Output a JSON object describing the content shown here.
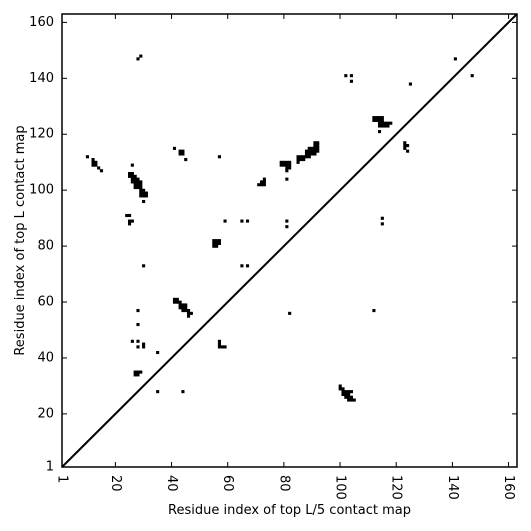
{
  "chart_data": {
    "type": "scatter",
    "title": "",
    "xlabel": "Residue index of top L/5 contact map",
    "ylabel": "Residue index of top L contact map",
    "xlim": [
      1,
      163
    ],
    "ylim": [
      1,
      163
    ],
    "xticks": [
      1,
      20,
      40,
      60,
      80,
      100,
      120,
      140,
      160
    ],
    "yticks": [
      1,
      20,
      40,
      60,
      80,
      100,
      120,
      140,
      160
    ],
    "tick_labels": {
      "x": [
        "1",
        "20",
        "40",
        "60",
        "80",
        "100",
        "120",
        "140",
        "160"
      ],
      "y": [
        "1",
        "20",
        "40",
        "60",
        "80",
        "100",
        "120",
        "140",
        "160"
      ]
    },
    "x_tick_label_rotation": 90,
    "grid": false,
    "diagonal": true,
    "colors": {
      "contact": "#000000",
      "axis": "#000000",
      "background": "#ffffff"
    },
    "series": [
      {
        "marker": "square",
        "points": [
          [
            10,
            112
          ],
          [
            12,
            111
          ],
          [
            12,
            110
          ],
          [
            13,
            110
          ],
          [
            12,
            109
          ],
          [
            13,
            109
          ],
          [
            14,
            108
          ],
          [
            15,
            107
          ],
          [
            24,
            91
          ],
          [
            25,
            91
          ],
          [
            25,
            89
          ],
          [
            26,
            89
          ],
          [
            25,
            88
          ],
          [
            25,
            106
          ],
          [
            26,
            106
          ],
          [
            25,
            105
          ],
          [
            26,
            105
          ],
          [
            27,
            105
          ],
          [
            26,
            104
          ],
          [
            27,
            104
          ],
          [
            28,
            104
          ],
          [
            26,
            103
          ],
          [
            27,
            103
          ],
          [
            28,
            103
          ],
          [
            29,
            103
          ],
          [
            27,
            102
          ],
          [
            28,
            102
          ],
          [
            29,
            102
          ],
          [
            27,
            101
          ],
          [
            28,
            101
          ],
          [
            29,
            101
          ],
          [
            29,
            100
          ],
          [
            30,
            100
          ],
          [
            29,
            99
          ],
          [
            30,
            99
          ],
          [
            31,
            99
          ],
          [
            29,
            98
          ],
          [
            30,
            98
          ],
          [
            31,
            98
          ],
          [
            30,
            96
          ],
          [
            26,
            109
          ],
          [
            28,
            147
          ],
          [
            29,
            148
          ],
          [
            30,
            73
          ],
          [
            28,
            57
          ],
          [
            28,
            52
          ],
          [
            26,
            46
          ],
          [
            28,
            46
          ],
          [
            30,
            45
          ],
          [
            28,
            44
          ],
          [
            30,
            44
          ],
          [
            27,
            35
          ],
          [
            28,
            35
          ],
          [
            29,
            35
          ],
          [
            27,
            34
          ],
          [
            28,
            34
          ],
          [
            35,
            42
          ],
          [
            35,
            28
          ],
          [
            44,
            28
          ],
          [
            41,
            61
          ],
          [
            42,
            61
          ],
          [
            41,
            60
          ],
          [
            42,
            60
          ],
          [
            43,
            60
          ],
          [
            43,
            59
          ],
          [
            44,
            59
          ],
          [
            45,
            59
          ],
          [
            43,
            58
          ],
          [
            44,
            58
          ],
          [
            45,
            58
          ],
          [
            44,
            57
          ],
          [
            45,
            57
          ],
          [
            46,
            57
          ],
          [
            46,
            56
          ],
          [
            47,
            56
          ],
          [
            46,
            55
          ],
          [
            41,
            115
          ],
          [
            43,
            114
          ],
          [
            44,
            114
          ],
          [
            43,
            113
          ],
          [
            44,
            113
          ],
          [
            45,
            111
          ],
          [
            55,
            82
          ],
          [
            56,
            82
          ],
          [
            57,
            82
          ],
          [
            55,
            81
          ],
          [
            56,
            81
          ],
          [
            57,
            81
          ],
          [
            55,
            80
          ],
          [
            56,
            80
          ],
          [
            57,
            46
          ],
          [
            57,
            45
          ],
          [
            57,
            44
          ],
          [
            58,
            44
          ],
          [
            59,
            44
          ],
          [
            57,
            112
          ],
          [
            59,
            89
          ],
          [
            65,
            89
          ],
          [
            67,
            89
          ],
          [
            65,
            73
          ],
          [
            67,
            73
          ],
          [
            73,
            104
          ],
          [
            72,
            103
          ],
          [
            73,
            103
          ],
          [
            71,
            102
          ],
          [
            72,
            102
          ],
          [
            73,
            102
          ],
          [
            79,
            110
          ],
          [
            80,
            110
          ],
          [
            81,
            110
          ],
          [
            82,
            110
          ],
          [
            79,
            109
          ],
          [
            80,
            109
          ],
          [
            81,
            109
          ],
          [
            82,
            109
          ],
          [
            81,
            108
          ],
          [
            82,
            108
          ],
          [
            81,
            107
          ],
          [
            81,
            104
          ],
          [
            85,
            112
          ],
          [
            86,
            112
          ],
          [
            85,
            111
          ],
          [
            86,
            111
          ],
          [
            87,
            111
          ],
          [
            85,
            110
          ],
          [
            89,
            115
          ],
          [
            90,
            115
          ],
          [
            91,
            115
          ],
          [
            92,
            115
          ],
          [
            88,
            114
          ],
          [
            89,
            114
          ],
          [
            90,
            114
          ],
          [
            91,
            114
          ],
          [
            92,
            114
          ],
          [
            88,
            113
          ],
          [
            89,
            113
          ],
          [
            90,
            113
          ],
          [
            91,
            113
          ],
          [
            87,
            112
          ],
          [
            88,
            112
          ],
          [
            89,
            112
          ],
          [
            91,
            117
          ],
          [
            92,
            117
          ],
          [
            91,
            116
          ],
          [
            92,
            116
          ],
          [
            81,
            89
          ],
          [
            81,
            87
          ],
          [
            82,
            56
          ],
          [
            100,
            30
          ],
          [
            100,
            29
          ],
          [
            101,
            29
          ],
          [
            101,
            28
          ],
          [
            102,
            28
          ],
          [
            103,
            28
          ],
          [
            104,
            28
          ],
          [
            101,
            27
          ],
          [
            102,
            27
          ],
          [
            103,
            27
          ],
          [
            102,
            26
          ],
          [
            103,
            26
          ],
          [
            104,
            26
          ],
          [
            103,
            25
          ],
          [
            104,
            25
          ],
          [
            105,
            25
          ],
          [
            102,
            141
          ],
          [
            104,
            141
          ],
          [
            104,
            139
          ],
          [
            112,
            57
          ],
          [
            112,
            126
          ],
          [
            113,
            126
          ],
          [
            114,
            126
          ],
          [
            115,
            126
          ],
          [
            112,
            125
          ],
          [
            113,
            125
          ],
          [
            114,
            125
          ],
          [
            115,
            125
          ],
          [
            114,
            124
          ],
          [
            115,
            124
          ],
          [
            116,
            124
          ],
          [
            117,
            124
          ],
          [
            118,
            124
          ],
          [
            114,
            123
          ],
          [
            115,
            123
          ],
          [
            116,
            123
          ],
          [
            117,
            123
          ],
          [
            114,
            121
          ],
          [
            115,
            90
          ],
          [
            115,
            88
          ],
          [
            123,
            117
          ],
          [
            123,
            116
          ],
          [
            124,
            116
          ],
          [
            123,
            115
          ],
          [
            124,
            114
          ],
          [
            125,
            138
          ],
          [
            141,
            147
          ],
          [
            147,
            141
          ]
        ]
      }
    ]
  }
}
